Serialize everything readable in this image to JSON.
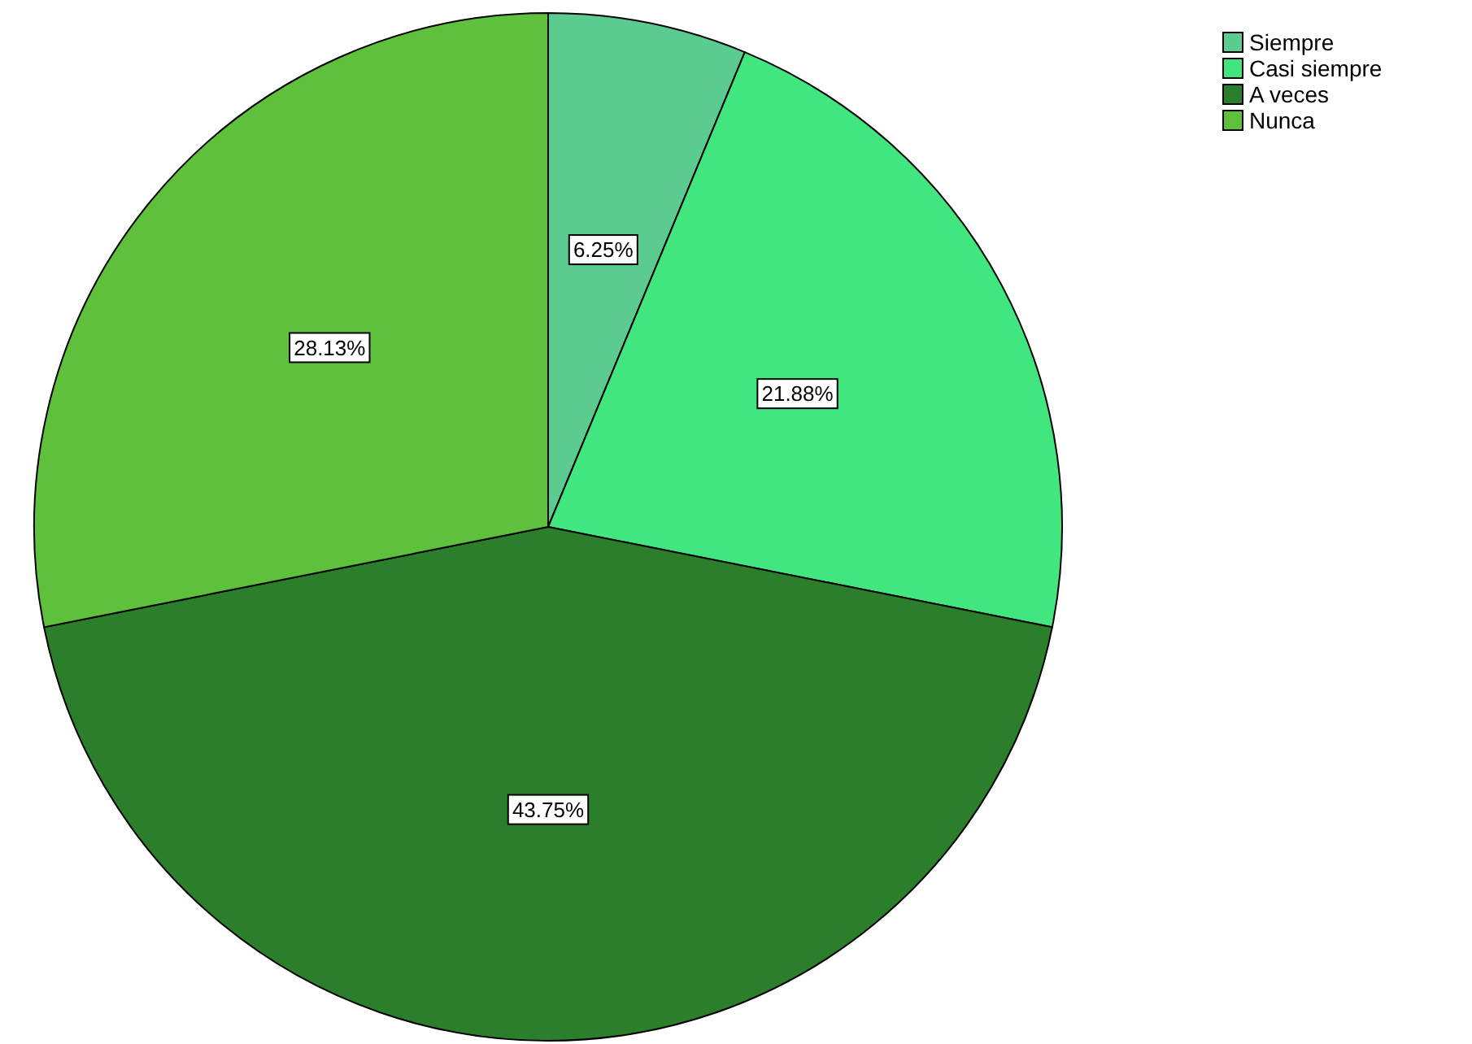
{
  "chart_data": {
    "type": "pie",
    "categories": [
      "Siempre",
      "Casi siempre",
      "A veces",
      "Nunca"
    ],
    "values": [
      6.25,
      21.88,
      43.75,
      28.13
    ],
    "colors": [
      "#5ccb8f",
      "#42e67f",
      "#2b7f2b",
      "#5fc03b"
    ],
    "value_labels": [
      "6.25%",
      "21.88%",
      "43.75%",
      "28.13%"
    ],
    "legend": "top right"
  }
}
